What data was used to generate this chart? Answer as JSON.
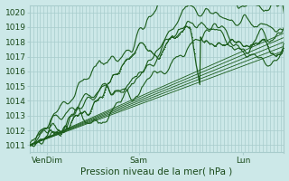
{
  "title": "",
  "xlabel": "Pression niveau de la mer( hPa )",
  "ylabel": "",
  "bg_color": "#cce8e8",
  "grid_color": "#a8cccc",
  "line_color": "#1a5c1a",
  "ylim": [
    1010.5,
    1020.5
  ],
  "yticks": [
    1011,
    1012,
    1013,
    1014,
    1015,
    1016,
    1017,
    1018,
    1019,
    1020
  ],
  "xtick_labels": [
    "VenDim",
    "Sam",
    "Lun"
  ],
  "xtick_pos": [
    0.07,
    0.43,
    0.84
  ],
  "smooth_lines": [
    [
      1011.0,
      1017.4
    ],
    [
      1011.0,
      1017.7
    ],
    [
      1011.0,
      1018.0
    ],
    [
      1011.0,
      1018.3
    ],
    [
      1011.0,
      1018.6
    ]
  ]
}
